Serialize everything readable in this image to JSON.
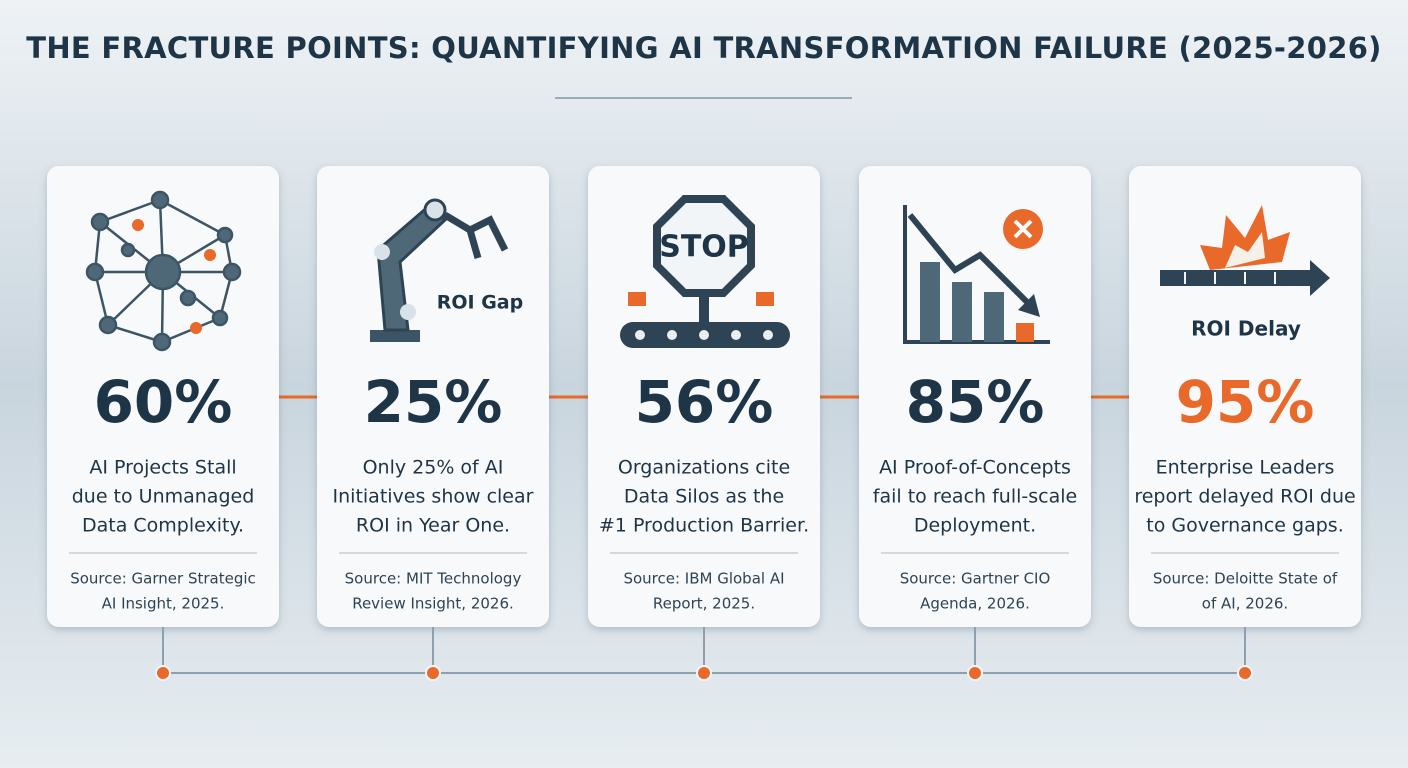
{
  "header": {
    "title": "THE FRACTURE POINTS: QUANTIFYING AI TRANSFORMATION FAILURE (2025-2026)"
  },
  "cards": [
    {
      "stat": "60%",
      "stat_color": "#1e3447",
      "description": [
        "AI Projects Stall",
        "due to Unmanaged",
        "Data Complexity."
      ],
      "source": [
        "Source: Garner Strategic",
        "AI Insight, 2025."
      ]
    },
    {
      "icon_label": "ROI Gap",
      "stat": "25%",
      "stat_color": "#1e3447",
      "description": [
        "Only 25% of AI",
        "Initiatives show clear",
        "ROI in Year One."
      ],
      "source": [
        "Source: MIT Technology",
        "Review Insight, 2026."
      ]
    },
    {
      "icon_label": "STOP",
      "stat": "56%",
      "stat_color": "#1e3447",
      "description": [
        "Organizations cite",
        "Data Silos as the",
        "#1 Production Barrier."
      ],
      "source": [
        "Source: IBM Global AI",
        "Report, 2025."
      ]
    },
    {
      "stat": "85%",
      "stat_color": "#1e3447",
      "description": [
        "AI Proof-of-Concepts",
        "fail to reach full-scale",
        "Deployment."
      ],
      "source": [
        "Source: Gartner CIO",
        "Agenda, 2026."
      ]
    },
    {
      "icon_label": "ROI Delay",
      "stat": "95%",
      "stat_color": "#e8692a",
      "description": [
        "Enterprise Leaders",
        "report delayed ROI due",
        "to Governance gaps."
      ],
      "source": [
        "Source: Deloitte State of",
        "of AI, 2026."
      ]
    }
  ]
}
